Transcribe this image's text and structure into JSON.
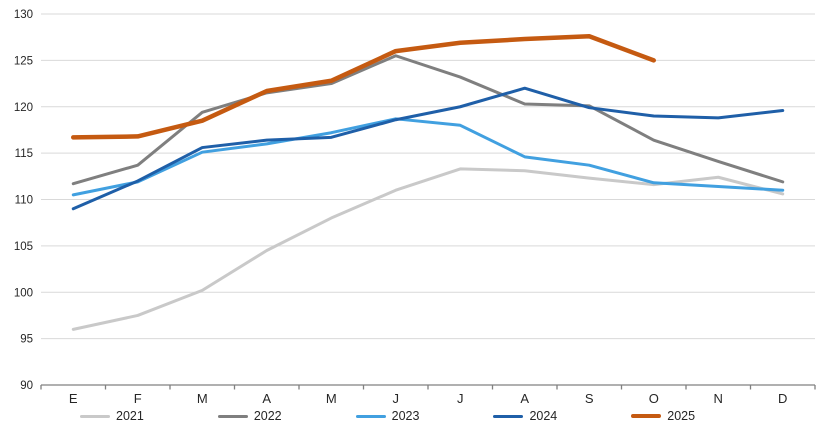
{
  "chart_data": {
    "type": "line",
    "title": "",
    "xlabel": "",
    "ylabel": "",
    "x_categories": [
      "E",
      "F",
      "M",
      "A",
      "M",
      "J",
      "J",
      "A",
      "S",
      "O",
      "N",
      "D"
    ],
    "ylim": [
      90,
      130
    ],
    "y_ticks": [
      90,
      95,
      100,
      105,
      110,
      115,
      120,
      125,
      130
    ],
    "grid": true,
    "legend_position": "bottom",
    "axis_color": "#808080",
    "gridline_color": "#D9D9D9",
    "series": [
      {
        "name": "2021",
        "color": "#C9C9C9",
        "stroke_width": 3,
        "values": [
          96.0,
          97.5,
          100.2,
          104.5,
          108.0,
          111.0,
          113.3,
          113.1,
          112.3,
          111.6,
          112.4,
          110.6
        ]
      },
      {
        "name": "2022",
        "color": "#7F7F7F",
        "stroke_width": 3,
        "values": [
          111.7,
          113.7,
          119.4,
          121.5,
          122.5,
          125.5,
          123.2,
          120.3,
          120.1,
          116.4,
          114.1,
          111.9
        ]
      },
      {
        "name": "2023",
        "color": "#41A0E0",
        "stroke_width": 3,
        "values": [
          110.5,
          111.9,
          115.1,
          116.0,
          117.2,
          118.7,
          118.0,
          114.6,
          113.7,
          111.8,
          111.4,
          111.0
        ]
      },
      {
        "name": "2024",
        "color": "#1F5FA8",
        "stroke_width": 3,
        "values": [
          109.0,
          112.0,
          115.6,
          116.4,
          116.7,
          118.6,
          120.0,
          122.0,
          119.9,
          119.0,
          118.8,
          119.6
        ]
      },
      {
        "name": "2025",
        "color": "#C55A11",
        "stroke_width": 4.5,
        "values": [
          116.7,
          116.8,
          118.5,
          121.7,
          122.8,
          126.0,
          126.9,
          127.3,
          127.6,
          125.0
        ]
      }
    ]
  }
}
